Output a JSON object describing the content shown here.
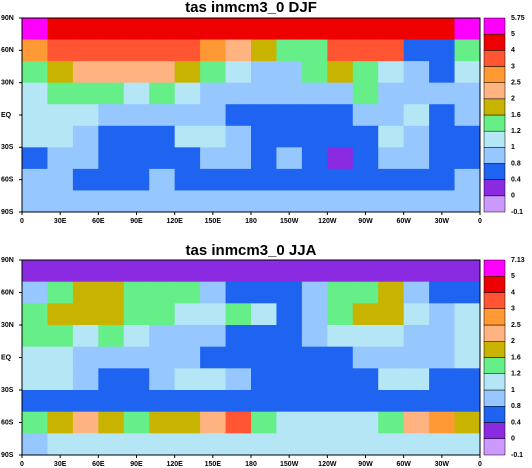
{
  "chart_data": [
    {
      "type": "heatmap",
      "title": "tas inmcm3_0 DJF",
      "xlim": [
        0,
        360
      ],
      "ylim": [
        -90,
        90
      ],
      "xticks": [
        0,
        {
          "value": 30,
          "label": "30E"
        },
        {
          "value": 60,
          "label": "60E"
        },
        {
          "value": 90,
          "label": "90E"
        },
        {
          "value": 120,
          "label": "120E"
        },
        {
          "value": 150,
          "label": "150E"
        },
        180,
        {
          "value": 210,
          "label": "150W"
        },
        {
          "value": 240,
          "label": "120W"
        },
        {
          "value": 270,
          "label": "90W"
        },
        {
          "value": 300,
          "label": "60W"
        },
        {
          "value": 330,
          "label": "30W"
        },
        {
          "value": 360,
          "label": "0"
        }
      ],
      "yticks": [
        {
          "value": 90,
          "label": "90N"
        },
        {
          "value": 60,
          "label": "60N"
        },
        {
          "value": 30,
          "label": "30N"
        },
        {
          "value": 0,
          "label": "EQ"
        },
        {
          "value": -30,
          "label": "30S"
        },
        {
          "value": -60,
          "label": "60S"
        },
        {
          "value": -90,
          "label": "90S"
        }
      ],
      "levels": [
        -0.1,
        0,
        0.4,
        0.8,
        1,
        1.2,
        1.6,
        2,
        2.5,
        3,
        4,
        5,
        5.75
      ],
      "colors": [
        "#cc99ff",
        "#8a2be2",
        "#1e64f0",
        "#96c8ff",
        "#b4e6f5",
        "#66ee88",
        "#c8b400",
        "#ffb380",
        "#ff9933",
        "#ff5533",
        "#ee0000",
        "#ff00ff"
      ],
      "values": [
        [
          5.5,
          4.5,
          4.5,
          4.5,
          4.2,
          4.2,
          4.5,
          4.5,
          4.5,
          4.5,
          4.5,
          4.2,
          4.2,
          4.5,
          4.5,
          4.5,
          4.5,
          5.5
        ],
        [
          2.8,
          3.5,
          3.5,
          3.5,
          3.5,
          3.2,
          3.2,
          2.5,
          2.2,
          1.8,
          1.4,
          1.4,
          3.2,
          3.5,
          3.5,
          0.6,
          0.6,
          1.4
        ],
        [
          1.4,
          1.8,
          2.2,
          2.2,
          2.2,
          2.2,
          1.8,
          1.4,
          1.1,
          0.9,
          0.9,
          1.4,
          1.8,
          1.4,
          1.1,
          0.9,
          0.6,
          1.1
        ],
        [
          1.1,
          1.4,
          1.4,
          1.4,
          1.1,
          1.4,
          1.1,
          0.9,
          0.9,
          0.9,
          0.9,
          0.9,
          0.9,
          1.4,
          0.9,
          0.9,
          0.9,
          0.9
        ],
        [
          1.1,
          1.1,
          1.1,
          0.9,
          0.9,
          0.9,
          0.9,
          0.9,
          0.6,
          0.6,
          0.6,
          0.6,
          0.6,
          0.9,
          0.9,
          1.1,
          0.6,
          0.9
        ],
        [
          1.1,
          1.1,
          0.9,
          0.6,
          0.6,
          0.6,
          1.1,
          1.1,
          0.9,
          0.6,
          0.6,
          0.6,
          0.6,
          0.6,
          1.1,
          0.9,
          0.6,
          0.6
        ],
        [
          0.6,
          0.9,
          0.9,
          0.6,
          0.6,
          0.6,
          0.6,
          0.9,
          0.9,
          0.6,
          0.9,
          0.6,
          0.2,
          0.6,
          0.9,
          0.9,
          0.6,
          0.6
        ],
        [
          0.9,
          0.9,
          0.6,
          0.6,
          0.6,
          0.9,
          0.6,
          0.6,
          0.6,
          0.6,
          0.6,
          0.6,
          0.6,
          0.6,
          0.6,
          0.6,
          0.6,
          0.9
        ],
        [
          0.9,
          0.9,
          0.9,
          0.9,
          0.9,
          0.9,
          0.9,
          0.9,
          0.9,
          0.9,
          0.9,
          0.9,
          0.9,
          0.9,
          0.9,
          0.9,
          0.9,
          0.9
        ]
      ]
    },
    {
      "type": "heatmap",
      "title": "tas inmcm3_0 JJA",
      "xlim": [
        0,
        360
      ],
      "ylim": [
        -90,
        90
      ],
      "xticks": [
        0,
        {
          "value": 30,
          "label": "30E"
        },
        {
          "value": 60,
          "label": "60E"
        },
        {
          "value": 90,
          "label": "90E"
        },
        {
          "value": 120,
          "label": "120E"
        },
        {
          "value": 150,
          "label": "150E"
        },
        180,
        {
          "value": 210,
          "label": "150W"
        },
        {
          "value": 240,
          "label": "120W"
        },
        {
          "value": 270,
          "label": "90W"
        },
        {
          "value": 300,
          "label": "60W"
        },
        {
          "value": 330,
          "label": "30W"
        },
        {
          "value": 360,
          "label": "0"
        }
      ],
      "yticks": [
        {
          "value": 90,
          "label": "90N"
        },
        {
          "value": 60,
          "label": "60N"
        },
        {
          "value": 30,
          "label": "30N"
        },
        {
          "value": 0,
          "label": "EQ"
        },
        {
          "value": -30,
          "label": "30S"
        },
        {
          "value": -60,
          "label": "60S"
        },
        {
          "value": -90,
          "label": "90S"
        }
      ],
      "levels": [
        -0.1,
        0,
        0.4,
        0.8,
        1,
        1.2,
        1.6,
        2,
        2.5,
        3,
        4,
        5,
        7.13
      ],
      "colors": [
        "#cc99ff",
        "#8a2be2",
        "#1e64f0",
        "#96c8ff",
        "#b4e6f5",
        "#66ee88",
        "#c8b400",
        "#ffb380",
        "#ff9933",
        "#ff5533",
        "#ee0000",
        "#ff00ff"
      ],
      "values": [
        [
          0.3,
          0.3,
          0.3,
          0.3,
          0.3,
          0.3,
          0.3,
          0.3,
          0.3,
          0.3,
          0.3,
          0.3,
          0.3,
          0.3,
          0.3,
          0.3,
          0.3,
          0.3
        ],
        [
          0.9,
          1.4,
          1.8,
          1.8,
          1.4,
          1.4,
          1.4,
          0.9,
          0.6,
          0.6,
          0.6,
          0.9,
          1.4,
          1.4,
          1.8,
          0.9,
          0.6,
          0.6
        ],
        [
          1.4,
          1.8,
          1.8,
          1.8,
          1.4,
          1.4,
          1.1,
          1.1,
          1.4,
          1.1,
          0.6,
          0.9,
          1.4,
          1.8,
          1.8,
          1.1,
          0.9,
          1.1
        ],
        [
          1.4,
          1.4,
          1.1,
          1.4,
          1.1,
          0.9,
          0.9,
          0.9,
          0.6,
          0.6,
          0.6,
          0.9,
          1.1,
          1.1,
          1.1,
          0.9,
          0.9,
          1.1
        ],
        [
          1.1,
          1.1,
          0.9,
          0.9,
          0.9,
          0.9,
          0.9,
          0.6,
          0.6,
          0.6,
          0.6,
          0.6,
          0.6,
          0.9,
          0.9,
          0.9,
          0.9,
          1.1
        ],
        [
          1.1,
          1.1,
          0.9,
          0.6,
          0.6,
          0.9,
          1.1,
          1.1,
          0.9,
          0.6,
          0.6,
          0.6,
          0.6,
          0.6,
          1.1,
          1.1,
          0.6,
          0.6
        ],
        [
          0.6,
          0.6,
          0.6,
          0.6,
          0.6,
          0.6,
          0.6,
          0.6,
          0.6,
          0.6,
          0.6,
          0.6,
          0.6,
          0.6,
          0.6,
          0.6,
          0.6,
          0.6
        ],
        [
          1.4,
          1.8,
          2.2,
          1.8,
          1.4,
          1.8,
          1.8,
          2.2,
          3.5,
          1.4,
          1.1,
          1.1,
          1.1,
          1.1,
          1.4,
          2.2,
          2.8,
          1.8
        ],
        [
          0.9,
          1.1,
          1.1,
          1.1,
          1.1,
          1.1,
          1.1,
          1.1,
          1.1,
          1.1,
          1.1,
          1.1,
          1.1,
          1.1,
          1.1,
          1.1,
          1.1,
          1.1
        ]
      ]
    }
  ]
}
